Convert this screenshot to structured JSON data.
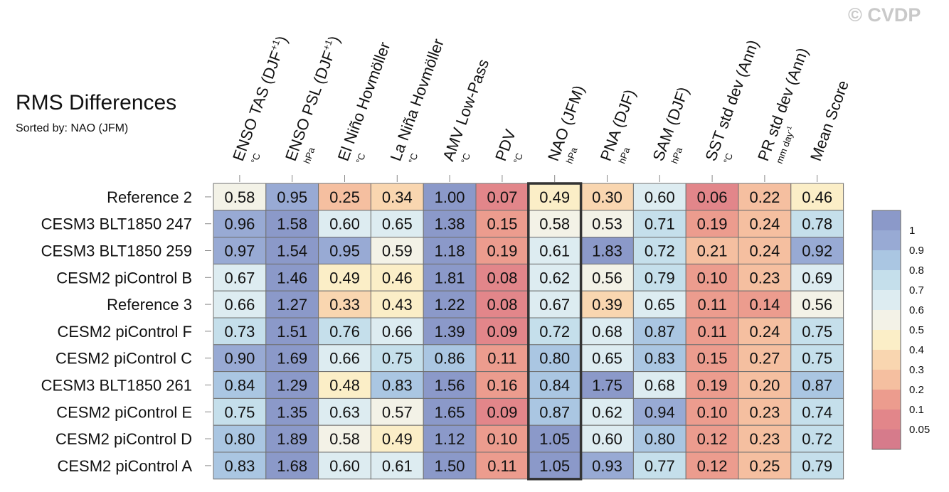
{
  "watermark": "© CVDP",
  "chart_data": {
    "type": "heatmap",
    "title": "RMS Differences",
    "subtitle": "Sorted by: NAO (JFM)",
    "columns": [
      {
        "label": "ENSO TAS (DJF",
        "sup": "+1",
        "close": ")",
        "unit": "°C"
      },
      {
        "label": "ENSO PSL (DJF",
        "sup": "+1",
        "close": ")",
        "unit": "hPa"
      },
      {
        "label": "El Niño Hovmöller",
        "unit": "°C"
      },
      {
        "label": "La Niña Hovmöller",
        "unit": "°C"
      },
      {
        "label": "AMV Low-Pass",
        "unit": "°C"
      },
      {
        "label": "PDV",
        "unit": "°C"
      },
      {
        "label": "NAO (JFM)",
        "unit": "hPa"
      },
      {
        "label": "PNA (DJF)",
        "unit": "hPa"
      },
      {
        "label": "SAM (DJF)",
        "unit": "hPa"
      },
      {
        "label": "SST std dev (Ann)",
        "unit": "°C"
      },
      {
        "label": "PR std dev (Ann)",
        "unit": "mm day",
        "unit_sup": "-1"
      },
      {
        "label": "Mean Score",
        "unit": ""
      }
    ],
    "rows": [
      "Reference 2",
      "CESM3 BLT1850 247",
      "CESM3 BLT1850 259",
      "CESM2 piControl B",
      "Reference 3",
      "CESM2 piControl F",
      "CESM2 piControl C",
      "CESM3 BLT1850 261",
      "CESM2 piControl E",
      "CESM2 piControl D",
      "CESM2 piControl A"
    ],
    "values": [
      [
        "0.58",
        "0.95",
        "0.25",
        "0.34",
        "1.00",
        "0.07",
        "0.49",
        "0.30",
        "0.60",
        "0.06",
        "0.22",
        "0.46"
      ],
      [
        "0.96",
        "1.58",
        "0.60",
        "0.65",
        "1.38",
        "0.15",
        "0.58",
        "0.53",
        "0.71",
        "0.19",
        "0.24",
        "0.78"
      ],
      [
        "0.97",
        "1.54",
        "0.95",
        "0.59",
        "1.18",
        "0.19",
        "0.61",
        "1.83",
        "0.72",
        "0.21",
        "0.24",
        "0.92"
      ],
      [
        "0.67",
        "1.46",
        "0.49",
        "0.46",
        "1.81",
        "0.08",
        "0.62",
        "0.56",
        "0.79",
        "0.10",
        "0.23",
        "0.69"
      ],
      [
        "0.66",
        "1.27",
        "0.33",
        "0.43",
        "1.22",
        "0.08",
        "0.67",
        "0.39",
        "0.65",
        "0.11",
        "0.14",
        "0.56"
      ],
      [
        "0.73",
        "1.51",
        "0.76",
        "0.66",
        "1.39",
        "0.09",
        "0.72",
        "0.68",
        "0.87",
        "0.11",
        "0.24",
        "0.75"
      ],
      [
        "0.90",
        "1.69",
        "0.66",
        "0.75",
        "0.86",
        "0.11",
        "0.80",
        "0.65",
        "0.83",
        "0.15",
        "0.27",
        "0.75"
      ],
      [
        "0.84",
        "1.29",
        "0.48",
        "0.83",
        "1.56",
        "0.16",
        "0.84",
        "1.75",
        "0.68",
        "0.19",
        "0.20",
        "0.87"
      ],
      [
        "0.75",
        "1.35",
        "0.63",
        "0.57",
        "1.65",
        "0.09",
        "0.87",
        "0.62",
        "0.94",
        "0.10",
        "0.23",
        "0.74"
      ],
      [
        "0.80",
        "1.89",
        "0.58",
        "0.49",
        "1.12",
        "0.10",
        "1.05",
        "0.60",
        "0.80",
        "0.12",
        "0.23",
        "0.72"
      ],
      [
        "0.83",
        "1.68",
        "0.60",
        "0.61",
        "1.50",
        "0.11",
        "1.05",
        "0.93",
        "0.77",
        "0.12",
        "0.25",
        "0.79"
      ]
    ],
    "highlight_column": 6,
    "colorbar": {
      "levels": [
        "0.05",
        "0.1",
        "0.2",
        "0.3",
        "0.4",
        "0.5",
        "0.6",
        "0.7",
        "0.8",
        "0.9",
        "1"
      ],
      "colors": [
        "#d67b8b",
        "#e2868a",
        "#ec9c8e",
        "#f5bfa0",
        "#f9d6b0",
        "#fbeec7",
        "#f3f2e7",
        "#ddecf1",
        "#c5dfeb",
        "#aac6e2",
        "#98aad4",
        "#8b99c9"
      ]
    }
  }
}
